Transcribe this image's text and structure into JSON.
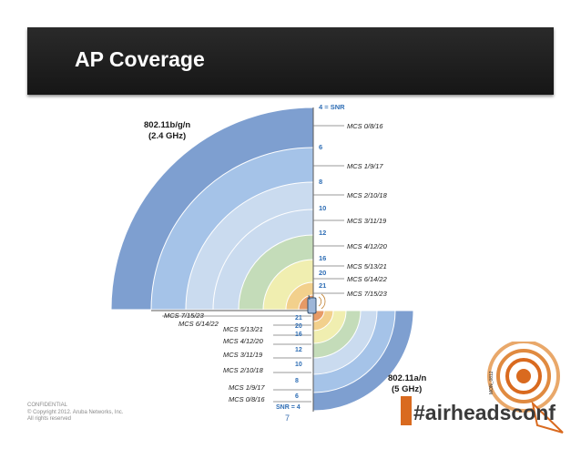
{
  "slide": {
    "title": "AP Coverage",
    "page_number": "7",
    "footer": [
      "CONFIDENTIAL",
      "© Copyright 2012. Aruba Networks, Inc.",
      "All rights reserved"
    ]
  },
  "band_24": {
    "label_line1": "802.11b/g/n",
    "label_line2": "(2.4 GHz)",
    "snr_values": [
      "4 = SNR",
      "6",
      "8",
      "10",
      "12",
      "16",
      "20",
      "21"
    ],
    "mcs_labels": [
      "MCS 0/8/16",
      "MCS 1/9/17",
      "MCS 2/10/18",
      "MCS 3/11/19",
      "MCS 4/12/20",
      "MCS 5/13/21",
      "MCS 6/14/22",
      "MCS 7/15/23"
    ]
  },
  "band_5": {
    "label_line1": "802.11a/n",
    "label_line2": "(5 GHz)",
    "snr_values": [
      "21",
      "20",
      "16",
      "12",
      "10",
      "8",
      "6",
      "SNR = 4"
    ],
    "mcs_labels": [
      "MCS 7/15/23",
      "MCS 6/14/22",
      "MCS 5/13/21",
      "MCS 4/12/20",
      "MCS 3/11/19",
      "MCS 2/10/18",
      "MCS 1/9/17",
      "MCS 0/8/16"
    ]
  },
  "brand": {
    "hashtag": "#airheadsconf",
    "side_text": "MON_0812"
  },
  "colors": {
    "ring_outer": "#7e9fd0",
    "ring_blue": "#a5c3e8",
    "ring_lightblue": "#cadbef",
    "ring_green": "#c4dcb9",
    "ring_yellow": "#f0eeb0",
    "ring_orange": "#f2d08c",
    "ring_center": "#e79a66",
    "text_blue": "#2f6eb5",
    "brand_orange": "#d96a1f"
  }
}
